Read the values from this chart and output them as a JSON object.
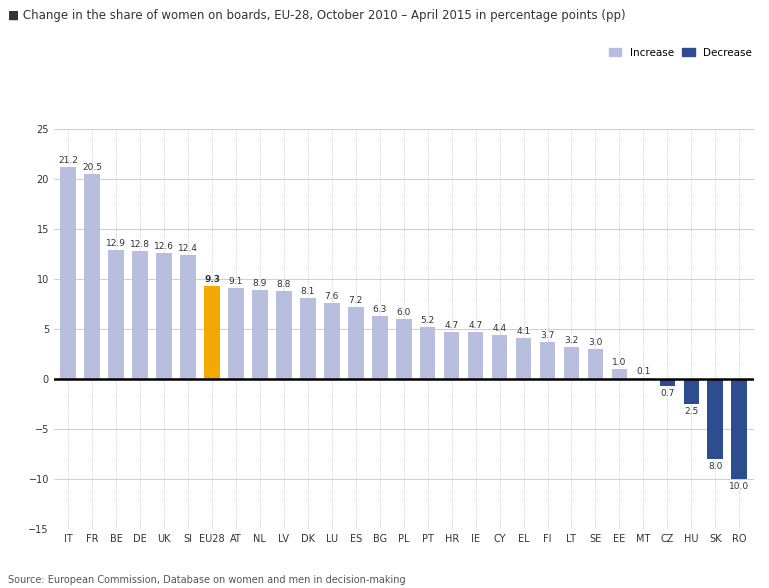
{
  "title": "Change in the share of women on boards, EU-28, October 2010 – April 2015 in percentage points (pp)",
  "source": "Source: European Commission, Database on women and men in decision-making",
  "categories": [
    "IT",
    "FR",
    "BE",
    "DE",
    "UK",
    "SI",
    "EU28",
    "AT",
    "NL",
    "LV",
    "DK",
    "LU",
    "ES",
    "BG",
    "PL",
    "PT",
    "HR",
    "IE",
    "CY",
    "EL",
    "FI",
    "LT",
    "SE",
    "EE",
    "MT",
    "CZ",
    "HU",
    "SK",
    "RO"
  ],
  "values": [
    21.2,
    20.5,
    12.9,
    12.8,
    12.6,
    12.4,
    9.3,
    9.1,
    8.9,
    8.8,
    8.1,
    7.6,
    7.2,
    6.3,
    6.0,
    5.2,
    4.7,
    4.7,
    4.4,
    4.1,
    3.7,
    3.2,
    3.0,
    1.0,
    0.1,
    -0.7,
    -2.5,
    -8.0,
    -10.0
  ],
  "bar_colors": [
    "#b8bedd",
    "#b8bedd",
    "#b8bedd",
    "#b8bedd",
    "#b8bedd",
    "#b8bedd",
    "#f5a800",
    "#b8bedd",
    "#b8bedd",
    "#b8bedd",
    "#b8bedd",
    "#b8bedd",
    "#b8bedd",
    "#b8bedd",
    "#b8bedd",
    "#b8bedd",
    "#b8bedd",
    "#b8bedd",
    "#b8bedd",
    "#b8bedd",
    "#b8bedd",
    "#b8bedd",
    "#b8bedd",
    "#b8bedd",
    "#b8bedd",
    "#2e4d8f",
    "#2e4d8f",
    "#2e4d8f",
    "#2e4d8f"
  ],
  "ylim": [
    -15,
    25
  ],
  "yticks": [
    -15,
    -10,
    -5,
    0,
    5,
    10,
    15,
    20,
    25
  ],
  "increase_color": "#b8bedd",
  "decrease_color": "#2e4d8f",
  "eu28_color": "#f5a800",
  "background_color": "#ffffff",
  "grid_color": "#bbbbbb",
  "title_color": "#333333",
  "title_fontsize": 8.5,
  "tick_fontsize": 7,
  "label_fontsize": 6.5,
  "bar_width": 0.65
}
